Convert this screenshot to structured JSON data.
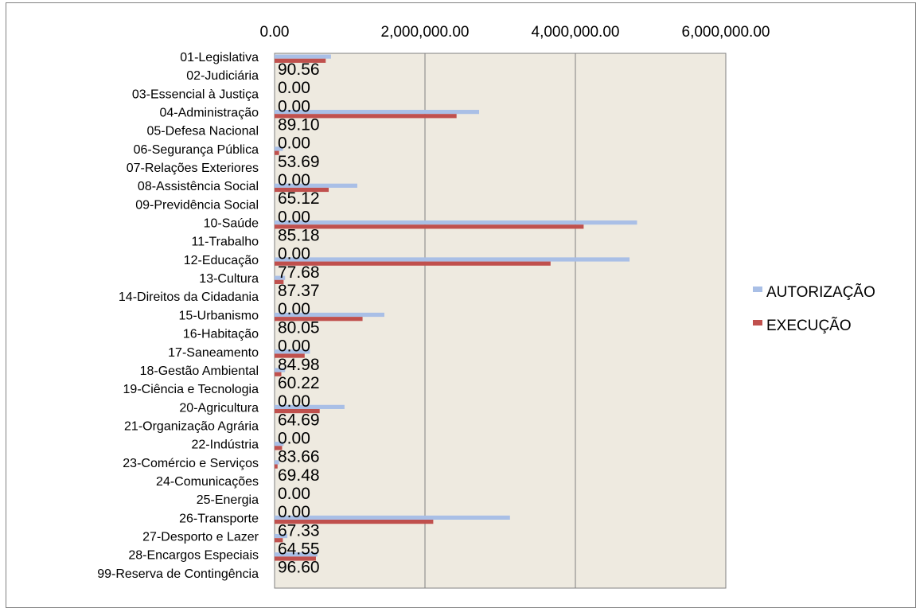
{
  "chart_data": {
    "type": "bar",
    "orientation": "horizontal",
    "title": "",
    "xlabel": "",
    "ylabel": "",
    "xlim": [
      0,
      6000000
    ],
    "x_ticks": [
      0,
      2000000,
      4000000,
      6000000
    ],
    "x_tick_labels": [
      "0.00",
      "2,000,000.00",
      "4,000,000.00",
      "6,000,000.00"
    ],
    "x_axis_position": "top",
    "grid": true,
    "legend_position": "right",
    "categories": [
      "01-Legislativa",
      "02-Judiciária",
      "03-Essencial à Justiça",
      "04-Administração",
      "05-Defesa Nacional",
      "06-Segurança Pública",
      "07-Relações Exteriores",
      "08-Assistência Social",
      "09-Previdência Social",
      "10-Saúde",
      "11-Trabalho",
      "12-Educação",
      "13-Cultura",
      "14-Direitos da Cidadania",
      "15-Urbanismo",
      "16-Habitação",
      "17-Saneamento",
      "18-Gestão Ambiental",
      "19-Ciência e Tecnologia",
      "20-Agricultura",
      "21-Organização Agrária",
      "22-Indústria",
      "23-Comércio e Serviços",
      "24-Comunicações",
      "25-Energia",
      "26-Transporte",
      "27-Desporto e Lazer",
      "28-Encargos Especiais",
      "99-Reserva de Contingência"
    ],
    "series": [
      {
        "name": "AUTORIZAÇÃO",
        "color": "#a9bfe6",
        "values": [
          750000,
          0,
          0,
          2720000,
          0,
          110000,
          0,
          1100000,
          0,
          4820000,
          0,
          4720000,
          140000,
          0,
          1460000,
          0,
          470000,
          140000,
          0,
          930000,
          0,
          120000,
          60000,
          0,
          0,
          3130000,
          170000,
          570000,
          0
        ]
      },
      {
        "name": "EXECUÇÃO",
        "color": "#c0504d",
        "values": [
          680000,
          0,
          0,
          2420000,
          0,
          60000,
          0,
          720000,
          0,
          4110000,
          0,
          3670000,
          120000,
          0,
          1170000,
          0,
          400000,
          90000,
          0,
          600000,
          0,
          100000,
          40000,
          0,
          0,
          2110000,
          110000,
          550000,
          0
        ]
      }
    ],
    "data_labels": [
      "90.56",
      "0.00",
      "0.00",
      "89.10",
      "0.00",
      "53.69",
      "0.00",
      "65.12",
      "0.00",
      "85.18",
      "0.00",
      "77.68",
      "87.37",
      "0.00",
      "80.05",
      "0.00",
      "84.98",
      "60.22",
      "0.00",
      "64.69",
      "0.00",
      "83.66",
      "69.48",
      "0.00",
      "0.00",
      "67.33",
      "64.55",
      "96.60",
      ""
    ]
  }
}
